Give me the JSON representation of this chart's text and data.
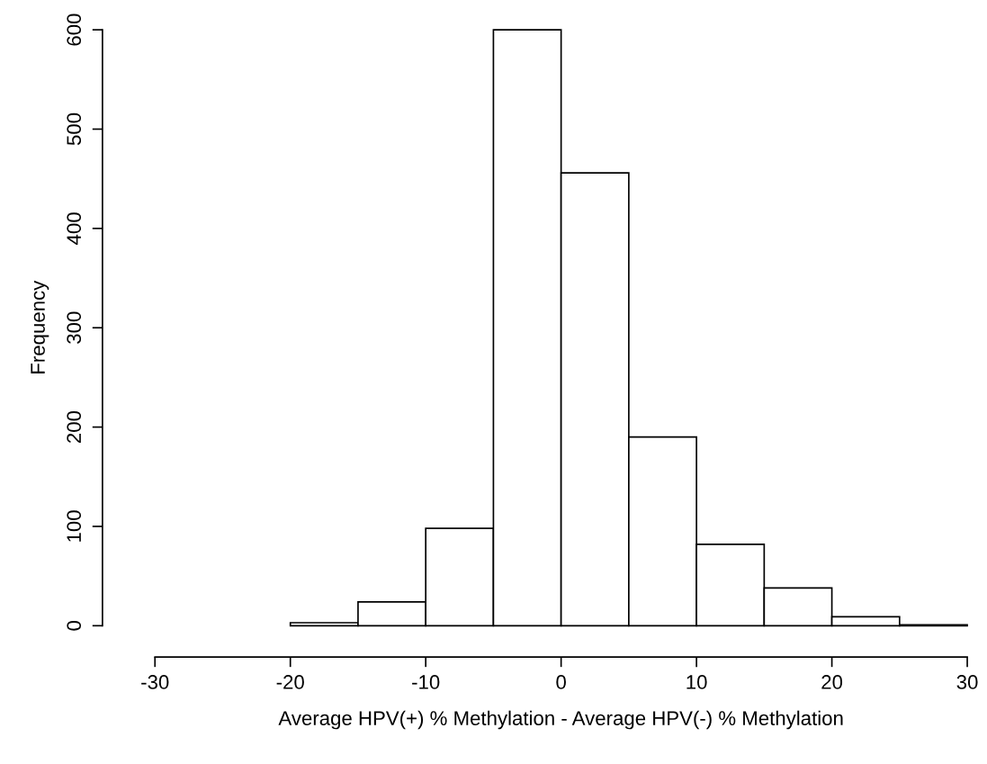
{
  "chart_data": {
    "type": "histogram",
    "xlabel": "Average HPV(+) % Methylation - Average HPV(-) % Methylation",
    "ylabel": "Frequency",
    "bins": [
      -20,
      -15,
      -10,
      -5,
      0,
      5,
      10,
      15,
      20,
      25,
      30
    ],
    "values": [
      3,
      24,
      98,
      600,
      456,
      190,
      82,
      38,
      9,
      1
    ],
    "color": "#ffffff",
    "xlim": [
      -30,
      30
    ],
    "xticks": [
      -30,
      -20,
      -10,
      0,
      10,
      20,
      30
    ],
    "ylim": [
      0,
      600
    ],
    "yticks": [
      0,
      100,
      200,
      300,
      400,
      500,
      600
    ],
    "grid": false
  }
}
